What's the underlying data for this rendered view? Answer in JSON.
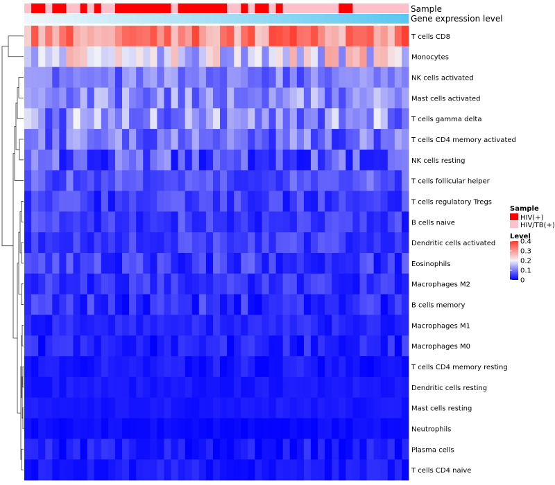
{
  "chart_data": {
    "type": "heatmap",
    "annotations": [
      {
        "name": "Sample",
        "type": "categorical"
      },
      {
        "name": "Gene expression level",
        "type": "continuous"
      }
    ],
    "rows": [
      "T cells CD8",
      "Monocytes",
      "NK cells activated",
      "Mast cells activated",
      "T cells gamma delta",
      "T cells CD4 memory activated",
      "NK cells resting",
      "T cells follicular helper",
      "T cells regulatory  Tregs",
      "B cells naive",
      "Dendritic cells activated",
      "Eosinophils",
      "Macrophages M2",
      "B cells memory",
      "Macrophages M1",
      "Macrophages M0",
      "T cells CD4 memory resting",
      "Dendritic cells resting",
      "Mast cells resting",
      "Neutrophils",
      "Plasma cells",
      "T cells CD4 naive"
    ],
    "samples": [
      "HIV/TB(+)",
      "HIV(+)",
      "HIV(+)",
      "HIV/TB(+)",
      "HIV(+)",
      "HIV(+)",
      "HIV/TB(+)",
      "HIV/TB(+)",
      "HIV(+)",
      "HIV/TB(+)",
      "HIV(+)",
      "HIV/TB(+)",
      "HIV/TB(+)",
      "HIV(+)",
      "HIV(+)",
      "HIV(+)",
      "HIV(+)",
      "HIV(+)",
      "HIV(+)",
      "HIV(+)",
      "HIV(+)",
      "HIV/TB(+)",
      "HIV(+)",
      "HIV(+)",
      "HIV(+)",
      "HIV(+)",
      "HIV(+)",
      "HIV(+)",
      "HIV(+)",
      "HIV/TB(+)",
      "HIV/TB(+)",
      "HIV(+)",
      "HIV/TB(+)",
      "HIV(+)",
      "HIV(+)",
      "HIV/TB(+)",
      "HIV(+)",
      "HIV/TB(+)",
      "HIV/TB(+)",
      "HIV/TB(+)",
      "HIV/TB(+)",
      "HIV/TB(+)",
      "HIV/TB(+)",
      "HIV/TB(+)",
      "HIV/TB(+)",
      "HIV(+)",
      "HIV(+)",
      "HIV/TB(+)",
      "HIV/TB(+)",
      "HIV/TB(+)",
      "HIV/TB(+)",
      "HIV/TB(+)",
      "HIV/TB(+)",
      "HIV/TB(+)",
      "HIV/TB(+)"
    ],
    "expression_level": [
      0.0,
      0.018,
      0.036,
      0.054,
      0.072,
      0.09,
      0.108,
      0.126,
      0.144,
      0.162,
      0.18,
      0.198,
      0.216,
      0.234,
      0.252,
      0.27,
      0.288,
      0.306,
      0.324,
      0.342,
      0.36,
      0.378,
      0.396,
      0.414,
      0.432,
      0.45,
      0.468,
      0.486,
      0.504,
      0.522,
      0.54,
      0.558,
      0.576,
      0.594,
      0.612,
      0.63,
      0.648,
      0.666,
      0.684,
      0.702,
      0.72,
      0.738,
      0.756,
      0.774,
      0.792,
      0.81,
      0.828,
      0.846,
      0.864,
      0.882,
      0.9,
      0.918,
      0.936,
      0.954,
      0.972
    ],
    "row_mean": [
      0.32,
      0.2,
      0.1,
      0.11,
      0.12,
      0.09,
      0.07,
      0.07,
      0.05,
      0.05,
      0.05,
      0.05,
      0.04,
      0.04,
      0.03,
      0.03,
      0.02,
      0.02,
      0.02,
      0.01,
      0.02,
      0.02
    ],
    "row_spread": [
      0.08,
      0.1,
      0.05,
      0.06,
      0.08,
      0.06,
      0.06,
      0.04,
      0.04,
      0.04,
      0.03,
      0.04,
      0.03,
      0.04,
      0.02,
      0.03,
      0.02,
      0.01,
      0.01,
      0.01,
      0.03,
      0.02
    ],
    "color_scale": {
      "min": 0,
      "mid": 0.2,
      "max": 0.4,
      "colors": [
        "#0000ff",
        "#f3f3f7",
        "#ff3b2b"
      ]
    },
    "legend": {
      "sample_title": "Sample",
      "sample_items": [
        {
          "label": "HIV(+)",
          "color": "#ff0000"
        },
        {
          "label": "HIV/TB(+)",
          "color": "#ffc0cb"
        }
      ],
      "level_title": "Level",
      "level_ticks": [
        "0.4",
        "0.3",
        "0.2",
        "0.1",
        "0"
      ],
      "level_tick_values": [
        0.4,
        0.3,
        0.2,
        0.1,
        0
      ]
    },
    "annotation_colors": {
      "expression_low": "#eef7fb",
      "expression_high": "#56c6f0"
    },
    "dendrogram": "rows",
    "legend_position": "right"
  }
}
